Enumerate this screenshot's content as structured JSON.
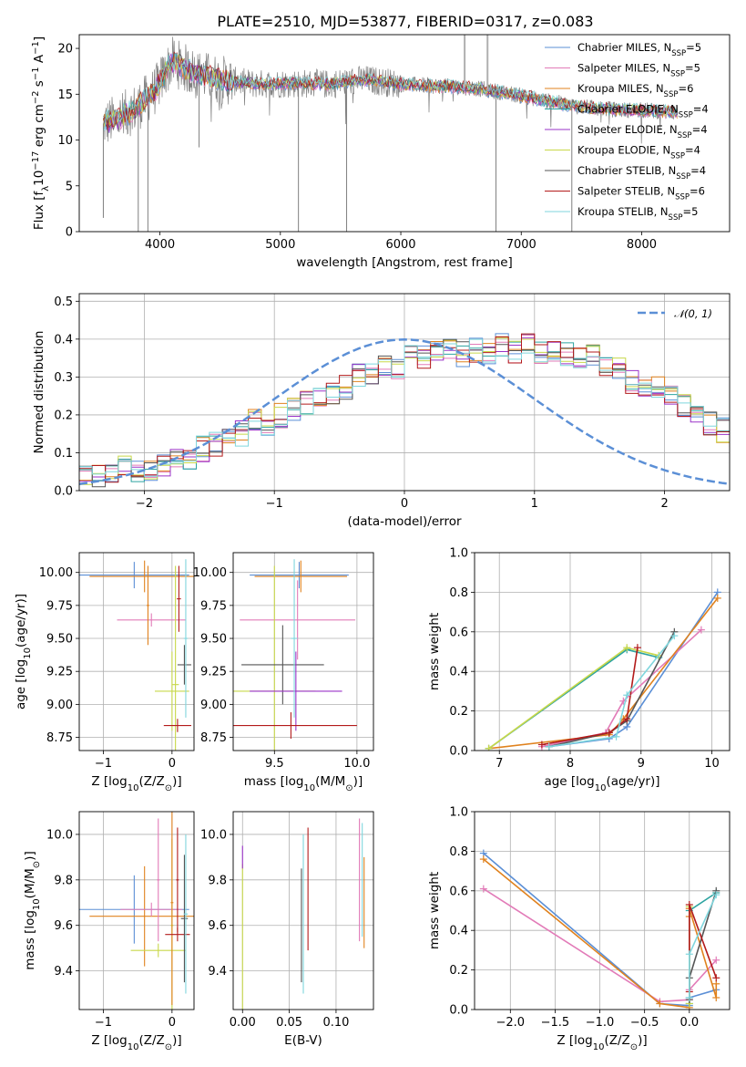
{
  "title": "PLATE=2510, MJD=53877, FIBERID=0317, z=0.083",
  "palette": {
    "chabrier_miles": "#5b8fd6",
    "salpeter_miles": "#e27bb8",
    "kroupa_miles": "#e0821e",
    "chabrier_elodie": "#2ca3a0",
    "salpeter_elodie": "#9a33c8",
    "kroupa_elodie": "#c8d84a",
    "chabrier_stelib": "#555555",
    "salpeter_stelib": "#b31b1b",
    "kroupa_stelib": "#7fd6dd",
    "observed_spectrum": "#808080",
    "gaussian": "#5b8fd6"
  },
  "chart_data": [
    {
      "id": "spectrum",
      "type": "line",
      "xlabel": "wavelength [Angstrom, rest frame]",
      "ylabel_parts": [
        "Flux [f",
        "λ",
        "10",
        "−17",
        " erg cm",
        "−2",
        " s",
        "−1",
        " A",
        "−1",
        "]"
      ],
      "xlim": [
        3330,
        8730
      ],
      "ylim": [
        0,
        21.5
      ],
      "xticks": [
        4000,
        5000,
        6000,
        7000,
        8000
      ],
      "yticks": [
        0,
        5,
        10,
        15,
        20
      ],
      "grid": false,
      "legend_position": "top-right",
      "legend": [
        {
          "label": "Chabrier MILES, N",
          "sub": "SSP",
          "suffix": "=5",
          "color_key": "chabrier_miles"
        },
        {
          "label": "Salpeter MILES, N",
          "sub": "SSP",
          "suffix": "=5",
          "color_key": "salpeter_miles"
        },
        {
          "label": "Kroupa MILES, N",
          "sub": "SSP",
          "suffix": "=6",
          "color_key": "kroupa_miles"
        },
        {
          "label": "Chabrier ELODIE, N",
          "sub": "SSP",
          "suffix": "=4",
          "color_key": "chabrier_elodie"
        },
        {
          "label": "Salpeter ELODIE, N",
          "sub": "SSP",
          "suffix": "=4",
          "color_key": "salpeter_elodie"
        },
        {
          "label": "Kroupa ELODIE, N",
          "sub": "SSP",
          "suffix": "=4",
          "color_key": "kroupa_elodie"
        },
        {
          "label": "Chabrier STELIB, N",
          "sub": "SSP",
          "suffix": "=4",
          "color_key": "chabrier_stelib"
        },
        {
          "label": "Salpeter STELIB, N",
          "sub": "SSP",
          "suffix": "=6",
          "color_key": "salpeter_stelib"
        },
        {
          "label": "Kroupa STELIB, N",
          "sub": "SSP",
          "suffix": "=5",
          "color_key": "kroupa_stelib"
        }
      ],
      "continuum": {
        "x": [
          3530,
          3650,
          3800,
          3950,
          4100,
          4300,
          4500,
          4800,
          5100,
          5400,
          5700,
          6000,
          6300,
          6600,
          6900,
          7200,
          7500,
          7800,
          8100,
          8300
        ],
        "y": [
          11.8,
          12.3,
          13.5,
          15.2,
          18.6,
          17.2,
          16.6,
          16.1,
          16.2,
          16.1,
          16.6,
          16.1,
          15.9,
          15.7,
          15.1,
          14.3,
          13.6,
          13.3,
          13.2,
          13.0
        ]
      },
      "absorption_dips": [
        {
          "x": 3530,
          "y": 1.5
        },
        {
          "x": 3820,
          "y": 0
        },
        {
          "x": 3900,
          "y": 0
        },
        {
          "x": 4325,
          "y": 9.2
        },
        {
          "x": 5150,
          "y": 0
        },
        {
          "x": 5550,
          "y": 0
        },
        {
          "x": 6790,
          "y": 0
        },
        {
          "x": 7420,
          "y": 0
        }
      ],
      "sky_spikes": [
        {
          "x": 6530,
          "y": 21.5
        },
        {
          "x": 6720,
          "y": 21.5
        }
      ]
    },
    {
      "id": "residuals",
      "type": "line",
      "xlabel": "(data-model)/error",
      "ylabel": "Normed distribution",
      "xlim": [
        -2.5,
        2.5
      ],
      "ylim": [
        0,
        0.52
      ],
      "xticks": [
        -2,
        -1,
        0,
        1,
        2
      ],
      "xtick_labels": [
        "−2",
        "−1",
        "0",
        "1",
        "2"
      ],
      "yticks": [
        0.0,
        0.1,
        0.2,
        0.3,
        0.4,
        0.5
      ],
      "ytick_labels": [
        "0.0",
        "0.1",
        "0.2",
        "0.3",
        "0.4",
        "0.5"
      ],
      "grid": true,
      "legend_position": "top-right",
      "legend_label": "𝒩(0, 1)",
      "gaussian": {
        "mu": 0,
        "sigma": 1
      },
      "bin_edges_start": -2.5,
      "bin_width": 0.1,
      "histogram_mean": [
        0.05,
        0.04,
        0.05,
        0.06,
        0.05,
        0.06,
        0.07,
        0.08,
        0.09,
        0.11,
        0.12,
        0.13,
        0.15,
        0.18,
        0.18,
        0.2,
        0.22,
        0.23,
        0.25,
        0.26,
        0.27,
        0.3,
        0.31,
        0.33,
        0.33,
        0.35,
        0.35,
        0.37,
        0.37,
        0.36,
        0.37,
        0.36,
        0.38,
        0.36,
        0.38,
        0.37,
        0.36,
        0.36,
        0.35,
        0.35,
        0.33,
        0.32,
        0.29,
        0.28,
        0.27,
        0.25,
        0.22,
        0.21,
        0.18,
        0.16,
        0.15,
        0.14,
        0.12,
        0.11,
        0.1,
        0.09,
        0.08,
        0.07,
        0.06,
        0.05
      ]
    },
    {
      "id": "age-vs-z",
      "type": "scatter",
      "xlabel_parts": [
        "Z [log",
        "10",
        "(Z/Z",
        "⊙",
        ")]"
      ],
      "ylabel_parts": [
        "age  [log",
        "10",
        "(age/yr)]"
      ],
      "xlim": [
        -1.35,
        0.32
      ],
      "ylim": [
        8.65,
        10.15
      ],
      "xticks": [
        -1,
        0
      ],
      "xtick_labels": [
        "−1",
        "0"
      ],
      "yticks": [
        8.75,
        9.0,
        9.25,
        9.5,
        9.75,
        10.0
      ],
      "ytick_labels": [
        "8.75",
        "9.00",
        "9.25",
        "9.50",
        "9.75",
        "10.00"
      ],
      "grid": true,
      "points": [
        {
          "x": -0.55,
          "y": 9.98,
          "xerr": 0.8,
          "yerr": 0.1,
          "color_key": "chabrier_miles"
        },
        {
          "x": -0.4,
          "y": 9.97,
          "xerr": 0.8,
          "yerr": 0.12,
          "color_key": "kroupa_miles"
        },
        {
          "x": -0.3,
          "y": 9.64,
          "xerr": 0.5,
          "yerr": 0.05,
          "color_key": "salpeter_miles"
        },
        {
          "x": -0.35,
          "y": 9.75,
          "xerr": 0.02,
          "yerr": 0.3,
          "color_key": "kroupa_miles"
        },
        {
          "x": 0.0,
          "y": 9.1,
          "xerr": 0.25,
          "yerr": 0.3,
          "color_key": "kroupa_elodie"
        },
        {
          "x": 0.05,
          "y": 9.15,
          "xerr": 0.05,
          "yerr": 0.9,
          "color_key": "kroupa_elodie"
        },
        {
          "x": 0.18,
          "y": 9.3,
          "xerr": 0.1,
          "yerr": 0.15,
          "color_key": "chabrier_stelib"
        },
        {
          "x": 0.2,
          "y": 9.5,
          "xerr": 0.03,
          "yerr": 0.6,
          "color_key": "kroupa_stelib"
        },
        {
          "x": 0.08,
          "y": 8.84,
          "xerr": 0.2,
          "yerr": 0.05,
          "color_key": "salpeter_stelib"
        },
        {
          "x": 0.1,
          "y": 9.8,
          "xerr": 0.03,
          "yerr": 0.25,
          "color_key": "salpeter_stelib"
        }
      ]
    },
    {
      "id": "age-vs-mass",
      "type": "scatter",
      "xlabel_parts": [
        "mass [log",
        "10",
        "(M/M",
        "⊙",
        ")]"
      ],
      "xlim": [
        9.25,
        10.1
      ],
      "ylim": [
        8.65,
        10.15
      ],
      "xticks": [
        9.5,
        10.0
      ],
      "xtick_labels": [
        "9.5",
        "10.0"
      ],
      "yticks": [
        8.75,
        9.0,
        9.25,
        9.5,
        9.75,
        10.0
      ],
      "ytick_labels": [
        "8.75",
        "9.00",
        "9.25",
        "9.50",
        "9.75",
        "10.00"
      ],
      "grid": true,
      "points": [
        {
          "x": 9.65,
          "y": 9.98,
          "xerr": 0.3,
          "yerr": 0.1,
          "color_key": "chabrier_miles"
        },
        {
          "x": 9.66,
          "y": 9.97,
          "xerr": 0.28,
          "yerr": 0.12,
          "color_key": "kroupa_miles"
        },
        {
          "x": 9.64,
          "y": 9.64,
          "xerr": 0.35,
          "yerr": 0.3,
          "color_key": "salpeter_miles"
        },
        {
          "x": 9.5,
          "y": 9.1,
          "xerr": 0.25,
          "yerr": 0.95,
          "color_key": "kroupa_elodie"
        },
        {
          "x": 9.55,
          "y": 9.3,
          "xerr": 0.25,
          "yerr": 0.3,
          "color_key": "chabrier_stelib"
        },
        {
          "x": 9.63,
          "y": 9.1,
          "xerr": 0.28,
          "yerr": 0.3,
          "color_key": "salpeter_elodie"
        },
        {
          "x": 9.6,
          "y": 8.84,
          "xerr": 0.4,
          "yerr": 0.1,
          "color_key": "salpeter_stelib"
        },
        {
          "x": 9.62,
          "y": 9.5,
          "xerr": 0.02,
          "yerr": 0.6,
          "color_key": "kroupa_stelib"
        }
      ]
    },
    {
      "id": "mass-weight-vs-age",
      "type": "line",
      "xlabel_parts": [
        "age  [log",
        "10",
        "(age/yr)]"
      ],
      "ylabel": "mass weight",
      "xlim": [
        6.65,
        10.25
      ],
      "ylim": [
        0,
        1.0
      ],
      "xticks": [
        7,
        8,
        9,
        10
      ],
      "yticks": [
        0.0,
        0.2,
        0.4,
        0.6,
        0.8,
        1.0
      ],
      "ytick_labels": [
        "0.0",
        "0.2",
        "0.4",
        "0.6",
        "0.8",
        "1.0"
      ],
      "grid": true,
      "series": [
        {
          "color_key": "chabrier_miles",
          "x": [
            7.7,
            8.55,
            8.8,
            10.08
          ],
          "y": [
            0.02,
            0.06,
            0.12,
            0.8
          ]
        },
        {
          "color_key": "salpeter_miles",
          "x": [
            7.6,
            8.5,
            8.75,
            9.85
          ],
          "y": [
            0.02,
            0.09,
            0.25,
            0.61
          ]
        },
        {
          "color_key": "kroupa_miles",
          "x": [
            6.85,
            8.55,
            8.75,
            10.08
          ],
          "y": [
            0.01,
            0.08,
            0.16,
            0.77
          ]
        },
        {
          "color_key": "chabrier_elodie",
          "x": [
            6.85,
            8.8,
            9.25
          ],
          "y": [
            0.01,
            0.51,
            0.47
          ]
        },
        {
          "color_key": "kroupa_elodie",
          "x": [
            6.85,
            8.8,
            9.25
          ],
          "y": [
            0.01,
            0.52,
            0.48
          ]
        },
        {
          "color_key": "chabrier_stelib",
          "x": [
            7.7,
            8.55,
            8.8,
            9.47
          ],
          "y": [
            0.02,
            0.09,
            0.15,
            0.6
          ]
        },
        {
          "color_key": "salpeter_stelib",
          "x": [
            7.6,
            8.55,
            8.8,
            8.95
          ],
          "y": [
            0.03,
            0.09,
            0.16,
            0.52
          ]
        },
        {
          "color_key": "kroupa_stelib",
          "x": [
            7.7,
            8.65,
            8.8,
            9.47
          ],
          "y": [
            0.02,
            0.07,
            0.28,
            0.58
          ]
        }
      ]
    },
    {
      "id": "mass-vs-z",
      "type": "scatter",
      "xlabel_parts": [
        "Z [log",
        "10",
        "(Z/Z",
        "⊙",
        ")]"
      ],
      "ylabel_parts": [
        "mass [log",
        "10",
        "(M/M",
        "⊙",
        ")]"
      ],
      "xlim": [
        -1.35,
        0.32
      ],
      "ylim": [
        9.23,
        10.1
      ],
      "xticks": [
        -1,
        0
      ],
      "xtick_labels": [
        "−1",
        "0"
      ],
      "yticks": [
        9.4,
        9.6,
        9.8,
        10.0
      ],
      "ytick_labels": [
        "9.4",
        "9.6",
        "9.8",
        "10.0"
      ],
      "grid": true,
      "points": [
        {
          "x": -0.55,
          "y": 9.67,
          "xerr": 0.8,
          "yerr": 0.15,
          "color_key": "chabrier_miles"
        },
        {
          "x": -0.4,
          "y": 9.64,
          "xerr": 0.8,
          "yerr": 0.22,
          "color_key": "kroupa_miles"
        },
        {
          "x": -0.2,
          "y": 9.8,
          "xerr": 0.02,
          "yerr": 0.27,
          "color_key": "salpeter_miles"
        },
        {
          "x": -0.3,
          "y": 9.67,
          "xerr": 0.45,
          "yerr": 0.03,
          "color_key": "salpeter_miles"
        },
        {
          "x": -0.2,
          "y": 9.49,
          "xerr": 0.4,
          "yerr": 0.03,
          "color_key": "kroupa_elodie"
        },
        {
          "x": 0.0,
          "y": 9.6,
          "xerr": 0.02,
          "yerr": 0.38,
          "color_key": "kroupa_elodie"
        },
        {
          "x": 0.0,
          "y": 9.7,
          "xerr": 0.02,
          "yerr": 0.45,
          "color_key": "kroupa_miles"
        },
        {
          "x": 0.08,
          "y": 9.56,
          "xerr": 0.18,
          "yerr": 0.03,
          "color_key": "salpeter_stelib"
        },
        {
          "x": 0.08,
          "y": 9.8,
          "xerr": 0.02,
          "yerr": 0.23,
          "color_key": "salpeter_stelib"
        },
        {
          "x": 0.18,
          "y": 9.63,
          "xerr": 0.05,
          "yerr": 0.28,
          "color_key": "chabrier_stelib"
        },
        {
          "x": 0.2,
          "y": 9.65,
          "xerr": 0.03,
          "yerr": 0.35,
          "color_key": "kroupa_stelib"
        }
      ]
    },
    {
      "id": "mass-vs-ebv",
      "type": "scatter",
      "xlabel": "E(B-V)",
      "xlim": [
        -0.01,
        0.14
      ],
      "ylim": [
        9.23,
        10.1
      ],
      "xticks": [
        0.0,
        0.05,
        0.1
      ],
      "xtick_labels": [
        "0.00",
        "0.05",
        "0.10"
      ],
      "yticks": [
        9.4,
        9.6,
        9.8,
        10.0
      ],
      "ytick_labels": [
        "9.4",
        "9.6",
        "9.8",
        "10.0"
      ],
      "grid": true,
      "points": [
        {
          "x": 0.0,
          "y": 9.55,
          "xerr": 0.0,
          "yerr": 0.32,
          "color_key": "kroupa_elodie"
        },
        {
          "x": 0.0,
          "y": 9.9,
          "xerr": 0.0,
          "yerr": 0.05,
          "color_key": "salpeter_elodie"
        },
        {
          "x": 0.063,
          "y": 9.6,
          "xerr": 0.0,
          "yerr": 0.25,
          "color_key": "chabrier_stelib"
        },
        {
          "x": 0.065,
          "y": 9.65,
          "xerr": 0.0,
          "yerr": 0.35,
          "color_key": "kroupa_stelib"
        },
        {
          "x": 0.07,
          "y": 9.76,
          "xerr": 0.0,
          "yerr": 0.27,
          "color_key": "salpeter_stelib"
        },
        {
          "x": 0.125,
          "y": 9.8,
          "xerr": 0.0,
          "yerr": 0.27,
          "color_key": "salpeter_miles"
        },
        {
          "x": 0.13,
          "y": 9.7,
          "xerr": 0.0,
          "yerr": 0.2,
          "color_key": "kroupa_miles"
        },
        {
          "x": 0.128,
          "y": 9.8,
          "xerr": 0.0,
          "yerr": 0.25,
          "color_key": "kroupa_stelib"
        }
      ]
    },
    {
      "id": "mass-weight-vs-z",
      "type": "line",
      "xlabel_parts": [
        "Z [log",
        "10",
        "(Z/Z",
        "⊙",
        ")]"
      ],
      "ylabel": "mass weight",
      "xlim": [
        -2.4,
        0.45
      ],
      "ylim": [
        0,
        1.0
      ],
      "xticks": [
        -2.0,
        -1.5,
        -1.0,
        -0.5,
        0.0
      ],
      "xtick_labels": [
        "−2.0",
        "−1.5",
        "−1.0",
        "−0.5",
        "0.0"
      ],
      "yticks": [
        0.0,
        0.2,
        0.4,
        0.6,
        0.8,
        1.0
      ],
      "ytick_labels": [
        "0.0",
        "0.2",
        "0.4",
        "0.6",
        "0.8",
        "1.0"
      ],
      "grid": true,
      "series": [
        {
          "color_key": "chabrier_miles",
          "x": [
            -2.3,
            -0.33,
            0.0,
            0.0,
            0.3
          ],
          "y": [
            0.79,
            0.03,
            0.02,
            0.06,
            0.1
          ]
        },
        {
          "color_key": "salpeter_miles",
          "x": [
            -2.3,
            -0.33,
            0.0,
            0.0,
            0.3
          ],
          "y": [
            0.61,
            0.04,
            0.05,
            0.1,
            0.25
          ]
        },
        {
          "color_key": "kroupa_miles",
          "x": [
            -2.3,
            -0.33,
            0.0,
            0.0,
            0.0,
            0.3,
            0.3
          ],
          "y": [
            0.76,
            0.03,
            0.01,
            0.47,
            0.51,
            0.06,
            0.13
          ]
        },
        {
          "color_key": "chabrier_elodie",
          "x": [
            0.0,
            0.0,
            0.3
          ],
          "y": [
            0.03,
            0.5,
            0.59
          ]
        },
        {
          "color_key": "kroupa_elodie",
          "x": [
            0.0,
            0.0
          ],
          "y": [
            0.03,
            0.52
          ]
        },
        {
          "color_key": "chabrier_stelib",
          "x": [
            0.0,
            0.0,
            0.3
          ],
          "y": [
            0.05,
            0.16,
            0.6
          ]
        },
        {
          "color_key": "salpeter_stelib",
          "x": [
            0.0,
            0.0,
            0.3
          ],
          "y": [
            0.09,
            0.53,
            0.16
          ]
        },
        {
          "color_key": "kroupa_stelib",
          "x": [
            0.0,
            0.0,
            0.3
          ],
          "y": [
            0.06,
            0.28,
            0.58
          ]
        }
      ]
    }
  ]
}
